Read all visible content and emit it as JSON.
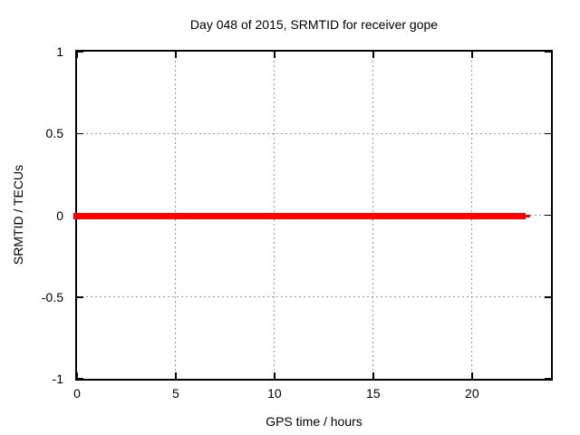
{
  "chart_data": {
    "type": "line",
    "title": "Day 048 of 2015, SRMTID for receiver gope",
    "xlabel": "GPS time / hours",
    "ylabel": "SRMTID / TECUs",
    "xlim": [
      0,
      24
    ],
    "ylim": [
      -1,
      1
    ],
    "xticks": [
      0,
      5,
      10,
      15,
      20
    ],
    "yticks": [
      1,
      0.5,
      0,
      -0.5,
      -1
    ],
    "grid": true,
    "grid_xticks": [
      5,
      10,
      15,
      20
    ],
    "grid_yticks": [
      0.5,
      0,
      -0.5
    ],
    "legend": "none",
    "background_color": "#ffffff",
    "border_color": "#000000",
    "grid_color": "#999999",
    "text_color": "#000000",
    "series": [
      {
        "name": "SRMTID",
        "color": "#ff0000",
        "line_width": 3,
        "x_start": 0,
        "x_end": 22.72,
        "x_tail_end": 22.95,
        "y_mean": 0,
        "y_amplitude": 0.02,
        "description": "SRMTID stays at approximately 0 TECUs for the whole day; dense samples from 0 h to about 22.9 h drawn as one thick red horizontal band at y = 0"
      }
    ]
  }
}
